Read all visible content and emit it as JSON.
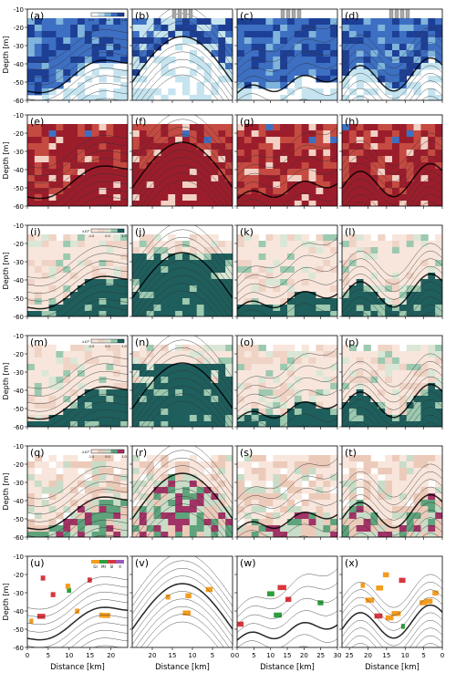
{
  "chart_data": {
    "type": "heatmap",
    "ylabel": "Depth [m]",
    "xlabel": "Distance [km]",
    "ylim": [
      -60,
      -10
    ],
    "y_ticks": [
      -10,
      -20,
      -30,
      -40,
      -50,
      -60
    ],
    "columns": [
      {
        "xlim": [
          0,
          24
        ],
        "x_ticks": [
          0,
          5,
          10,
          15,
          20
        ],
        "reversed": false
      },
      {
        "xlim": [
          0,
          25
        ],
        "x_ticks": [
          20,
          15,
          10,
          5,
          0
        ],
        "reversed": true
      },
      {
        "xlim": [
          0,
          30
        ],
        "x_ticks": [
          0,
          5,
          10,
          15,
          20,
          25,
          30
        ],
        "reversed": false
      },
      {
        "xlim": [
          0,
          27
        ],
        "x_ticks": [
          25,
          20,
          15,
          10,
          5,
          0
        ],
        "reversed": true
      }
    ],
    "rows": [
      {
        "scheme": "blue",
        "letters": [
          "(a)",
          "(b)",
          "(c)",
          "(d)"
        ],
        "colorbar_ticks": [
          "0.0",
          "0.4",
          "1.8"
        ]
      },
      {
        "scheme": "red",
        "letters": [
          "(e)",
          "(f)",
          "(g)",
          "(h)"
        ],
        "colorbar_ticks": []
      },
      {
        "scheme": "green",
        "letters": [
          "(i)",
          "(j)",
          "(k)",
          "(l)"
        ],
        "colorbar_label": "x10⁵",
        "colorbar_ticks": [
          "-1.0",
          "0.0",
          "1.0"
        ]
      },
      {
        "scheme": "green",
        "letters": [
          "(m)",
          "(n)",
          "(o)",
          "(p)"
        ],
        "colorbar_label": "x10⁵",
        "colorbar_ticks": [
          "-1.0",
          "0.0",
          "1.0"
        ]
      },
      {
        "scheme": "diverging",
        "letters": [
          "(q)",
          "(r)",
          "(s)",
          "(t)"
        ],
        "colorbar_label": "x10⁵",
        "colorbar_ticks": [
          "-1.0",
          "0.0",
          "1.0"
        ]
      },
      {
        "scheme": "category",
        "letters": [
          "(u)",
          "(v)",
          "(w)",
          "(x)"
        ],
        "legend": [
          "GI",
          "MI",
          "SI",
          "II"
        ]
      }
    ],
    "category_colors": [
      "#f39c1f",
      "#2e9e3e",
      "#d9363e",
      "#9b59b6"
    ],
    "scheme_colors": {
      "blue": [
        "#ffffff",
        "#c5e4ef",
        "#7fb4dc",
        "#3d6fc2",
        "#1d3f95"
      ],
      "red": [
        "#ffffff",
        "#f3d0c4",
        "#e8a38d",
        "#c54a41",
        "#9b1d2b"
      ],
      "green": [
        "#f8e6dc",
        "#efd3c5",
        "#dbe7d6",
        "#9cc9b0",
        "#1e5e5c"
      ],
      "diverging": [
        "#f8e6dc",
        "#eccab9",
        "#c9dcc7",
        "#5fa37d",
        "#a23366"
      ]
    }
  }
}
